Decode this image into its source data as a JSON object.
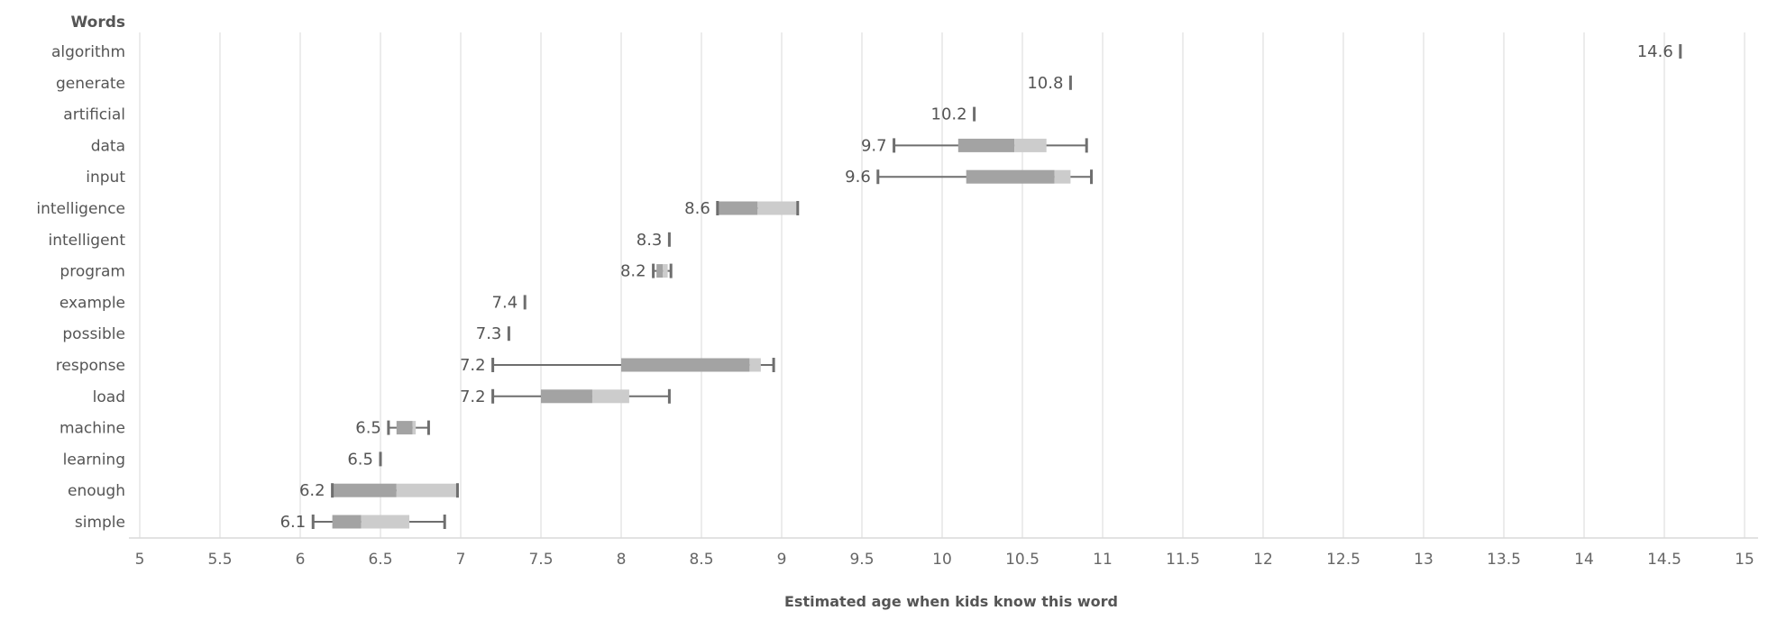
{
  "chart_data": {
    "type": "box",
    "header": "Words",
    "xlabel": "Estimated age when kids know this word",
    "xlim": [
      5,
      15
    ],
    "xticks": [
      "5",
      "5.5",
      "6",
      "6.5",
      "7",
      "7.5",
      "8",
      "8.5",
      "9",
      "9.5",
      "10",
      "10.5",
      "11",
      "11.5",
      "12",
      "12.5",
      "13",
      "13.5",
      "14",
      "14.5",
      "15"
    ],
    "grid": true,
    "colors": {
      "whisker": "#6e6e6e",
      "box_lower": "#a3a3a3",
      "box_upper": "#cccccc",
      "grid": "#e6e6e6",
      "text": "#555555"
    },
    "rows": [
      {
        "word": "algorithm",
        "label": "14.6",
        "min": 14.6,
        "q1": 14.6,
        "median": 14.6,
        "q3": 14.6,
        "max": 14.6
      },
      {
        "word": "generate",
        "label": "10.8",
        "min": 10.8,
        "q1": 10.8,
        "median": 10.8,
        "q3": 10.8,
        "max": 10.8
      },
      {
        "word": "artificial",
        "label": "10.2",
        "min": 10.2,
        "q1": 10.2,
        "median": 10.2,
        "q3": 10.2,
        "max": 10.2
      },
      {
        "word": "data",
        "label": "9.7",
        "min": 9.7,
        "q1": 10.1,
        "median": 10.45,
        "q3": 10.65,
        "max": 10.9
      },
      {
        "word": "input",
        "label": "9.6",
        "min": 9.6,
        "q1": 10.15,
        "median": 10.7,
        "q3": 10.8,
        "max": 10.93
      },
      {
        "word": "intelligence",
        "label": "8.6",
        "min": 8.6,
        "q1": 8.6,
        "median": 8.85,
        "q3": 9.1,
        "max": 9.1
      },
      {
        "word": "intelligent",
        "label": "8.3",
        "min": 8.3,
        "q1": 8.3,
        "median": 8.3,
        "q3": 8.3,
        "max": 8.3
      },
      {
        "word": "program",
        "label": "8.2",
        "min": 8.2,
        "q1": 8.22,
        "median": 8.26,
        "q3": 8.29,
        "max": 8.31
      },
      {
        "word": "example",
        "label": "7.4",
        "min": 7.4,
        "q1": 7.4,
        "median": 7.4,
        "q3": 7.4,
        "max": 7.4
      },
      {
        "word": "possible",
        "label": "7.3",
        "min": 7.3,
        "q1": 7.3,
        "median": 7.3,
        "q3": 7.3,
        "max": 7.3
      },
      {
        "word": "response",
        "label": "7.2",
        "min": 7.2,
        "q1": 8.0,
        "median": 8.8,
        "q3": 8.87,
        "max": 8.95
      },
      {
        "word": "load",
        "label": "7.2",
        "min": 7.2,
        "q1": 7.5,
        "median": 7.82,
        "q3": 8.05,
        "max": 8.3
      },
      {
        "word": "machine",
        "label": "6.5",
        "min": 6.55,
        "q1": 6.6,
        "median": 6.7,
        "q3": 6.72,
        "max": 6.8
      },
      {
        "word": "learning",
        "label": "6.5",
        "min": 6.5,
        "q1": 6.5,
        "median": 6.5,
        "q3": 6.5,
        "max": 6.5
      },
      {
        "word": "enough",
        "label": "6.2",
        "min": 6.2,
        "q1": 6.2,
        "median": 6.6,
        "q3": 6.98,
        "max": 6.98
      },
      {
        "word": "simple",
        "label": "6.1",
        "min": 6.08,
        "q1": 6.2,
        "median": 6.38,
        "q3": 6.68,
        "max": 6.9
      }
    ]
  }
}
